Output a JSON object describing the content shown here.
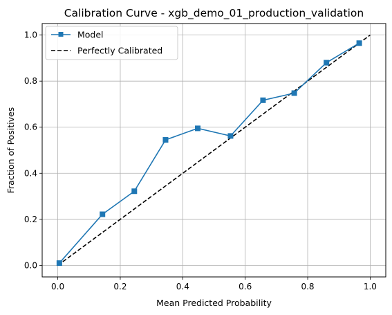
{
  "chart_data": {
    "type": "line",
    "title": "Calibration Curve - xgb_demo_01_production_validation",
    "xlabel": "Mean Predicted Probability",
    "ylabel": "Fraction of Positives",
    "xlim": [
      -0.05,
      1.05
    ],
    "ylim": [
      -0.05,
      1.05
    ],
    "xticks": [
      "0.0",
      "0.2",
      "0.4",
      "0.6",
      "0.8",
      "1.0"
    ],
    "yticks": [
      "0.0",
      "0.2",
      "0.4",
      "0.6",
      "0.8",
      "1.0"
    ],
    "grid": true,
    "legend_position": "top-left",
    "series": [
      {
        "name": "Model",
        "color": "#1f77b4",
        "marker": "square",
        "line_style": "solid",
        "x": [
          0.005,
          0.143,
          0.245,
          0.345,
          0.448,
          0.553,
          0.657,
          0.757,
          0.86,
          0.965
        ],
        "y": [
          0.01,
          0.222,
          0.322,
          0.545,
          0.595,
          0.562,
          0.717,
          0.748,
          0.88,
          0.965
        ]
      },
      {
        "name": "Perfectly Calibrated",
        "color": "#000000",
        "marker": "none",
        "line_style": "dashed",
        "x": [
          0.0,
          1.0
        ],
        "y": [
          0.0,
          1.0
        ]
      }
    ]
  }
}
